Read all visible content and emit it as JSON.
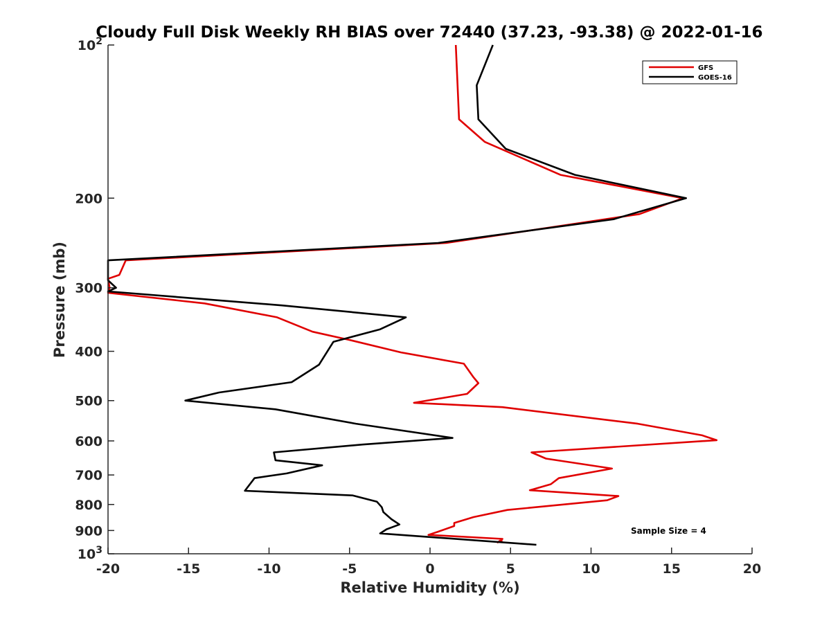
{
  "chart_data": {
    "type": "line",
    "title": "Cloudy Full Disk Weekly RH BIAS over 72440 (37.23, -93.38) @ 2022-01-16",
    "xlabel": "Relative Humidity (%)",
    "ylabel": "Pressure (mb)",
    "xlim": [
      -20,
      20
    ],
    "ylim": [
      100,
      1000
    ],
    "yscale": "log",
    "y_reversed": true,
    "x_ticks": [
      "-20",
      "-15",
      "-10",
      "-5",
      "0",
      "5",
      "10",
      "15",
      "20"
    ],
    "x_tick_values": [
      -20,
      -15,
      -10,
      -5,
      0,
      5,
      10,
      15,
      20
    ],
    "y_ticks": [
      {
        "value": 100,
        "base": "10",
        "exp": "2"
      },
      {
        "value": 200,
        "label": "200"
      },
      {
        "value": 300,
        "label": "300"
      },
      {
        "value": 400,
        "label": "400"
      },
      {
        "value": 500,
        "label": "500"
      },
      {
        "value": 600,
        "label": "600"
      },
      {
        "value": 700,
        "label": "700"
      },
      {
        "value": 800,
        "label": "800"
      },
      {
        "value": 900,
        "label": "900"
      },
      {
        "value": 1000,
        "base": "10",
        "exp": "3"
      }
    ],
    "legend": {
      "location": "top-right"
    },
    "annotation": "Sample Size = 4",
    "series": [
      {
        "name": "GFS",
        "color": "#e00000",
        "points": [
          [
            1.6,
            100
          ],
          [
            1.8,
            140
          ],
          [
            3.4,
            155
          ],
          [
            8.1,
            180
          ],
          [
            15.7,
            200
          ],
          [
            13.0,
            215
          ],
          [
            1.0,
            245
          ],
          [
            -18.9,
            265
          ],
          [
            -19.3,
            283
          ],
          [
            -20.0,
            288
          ],
          [
            -19.9,
            300
          ],
          [
            -20.0,
            307
          ],
          [
            -14.0,
            322
          ],
          [
            -9.5,
            343
          ],
          [
            -7.3,
            366
          ],
          [
            -5.0,
            380
          ],
          [
            -1.8,
            402
          ],
          [
            2.1,
            423
          ],
          [
            2.7,
            450
          ],
          [
            3.0,
            462
          ],
          [
            2.3,
            485
          ],
          [
            -1.0,
            505
          ],
          [
            4.5,
            515
          ],
          [
            12.9,
            555
          ],
          [
            16.9,
            585
          ],
          [
            17.8,
            598
          ],
          [
            6.3,
            632
          ],
          [
            7.2,
            650
          ],
          [
            11.3,
            680
          ],
          [
            8.0,
            710
          ],
          [
            7.5,
            730
          ],
          [
            6.2,
            750
          ],
          [
            11.7,
            770
          ],
          [
            11.0,
            785
          ],
          [
            4.8,
            820
          ],
          [
            2.7,
            847
          ],
          [
            1.5,
            870
          ],
          [
            1.5,
            882
          ],
          [
            0.5,
            905
          ],
          [
            -0.1,
            918
          ],
          [
            4.5,
            935
          ],
          [
            4.2,
            950
          ],
          [
            4.5,
            940
          ]
        ]
      },
      {
        "name": "GOES-16",
        "color": "#000000",
        "points": [
          [
            3.9,
            100
          ],
          [
            2.9,
            120
          ],
          [
            3.0,
            140
          ],
          [
            4.7,
            160
          ],
          [
            9.0,
            180
          ],
          [
            15.9,
            200
          ],
          [
            11.4,
            220
          ],
          [
            0.5,
            245
          ],
          [
            -20.0,
            265
          ],
          [
            -20.0,
            290
          ],
          [
            -19.5,
            300
          ],
          [
            -20.0,
            305
          ],
          [
            -9.2,
            325
          ],
          [
            -1.5,
            343
          ],
          [
            -3.1,
            362
          ],
          [
            -6.0,
            383
          ],
          [
            -6.9,
            425
          ],
          [
            -8.6,
            460
          ],
          [
            -13.1,
            482
          ],
          [
            -15.2,
            500
          ],
          [
            -9.6,
            520
          ],
          [
            -4.6,
            555
          ],
          [
            1.4,
            592
          ],
          [
            -4.2,
            610
          ],
          [
            -9.7,
            632
          ],
          [
            -9.6,
            655
          ],
          [
            -6.7,
            670
          ],
          [
            -8.9,
            695
          ],
          [
            -10.9,
            710
          ],
          [
            -11.5,
            752
          ],
          [
            -4.8,
            768
          ],
          [
            -3.3,
            790
          ],
          [
            -3.0,
            810
          ],
          [
            -2.9,
            828
          ],
          [
            -2.4,
            855
          ],
          [
            -1.9,
            876
          ],
          [
            -2.7,
            895
          ],
          [
            -3.1,
            912
          ],
          [
            6.6,
            960
          ]
        ]
      }
    ]
  }
}
